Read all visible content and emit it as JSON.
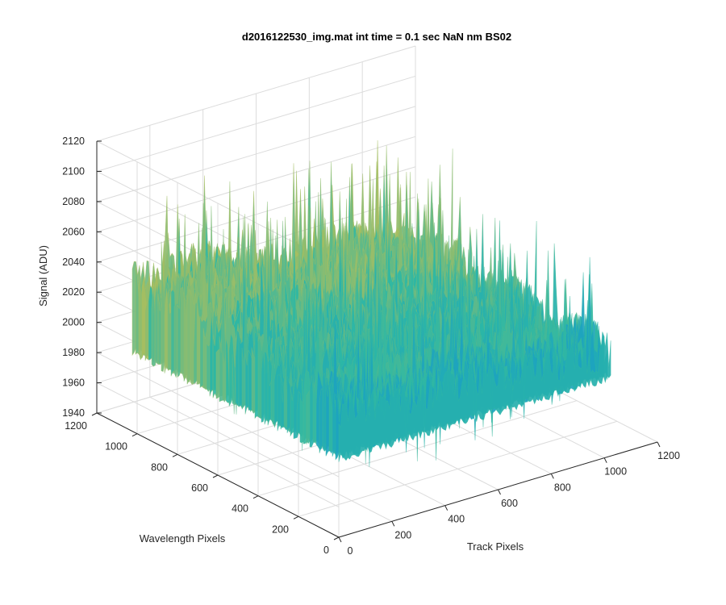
{
  "chart_data": {
    "type": "surface",
    "title": "d2016122530_img.mat int time = 0.1 sec  NaN nm BS02",
    "xlabel": "Track Pixels",
    "ylabel": "Wavelength Pixels",
    "zlabel": "Signal (ADU)",
    "xlim": [
      0,
      1200
    ],
    "ylim": [
      0,
      1200
    ],
    "zlim": [
      1940,
      2120
    ],
    "xticks": [
      "0",
      "200",
      "400",
      "600",
      "800",
      "1000",
      "1200"
    ],
    "yticks": [
      "0",
      "200",
      "400",
      "600",
      "800",
      "1000",
      "1200"
    ],
    "zticks": [
      "1940",
      "1960",
      "1980",
      "2000",
      "2020",
      "2040",
      "2060",
      "2080",
      "2100",
      "2120"
    ],
    "grid": true,
    "colormap": "parula",
    "data_extent": {
      "x": [
        0,
        1024
      ],
      "y": [
        0,
        1024
      ]
    },
    "signal_mean": 2020,
    "signal_range": [
      1955,
      2115
    ],
    "colors": {
      "low": "#0f8fd8",
      "mid": "#2bb7a6",
      "high": "#f2c236"
    }
  }
}
